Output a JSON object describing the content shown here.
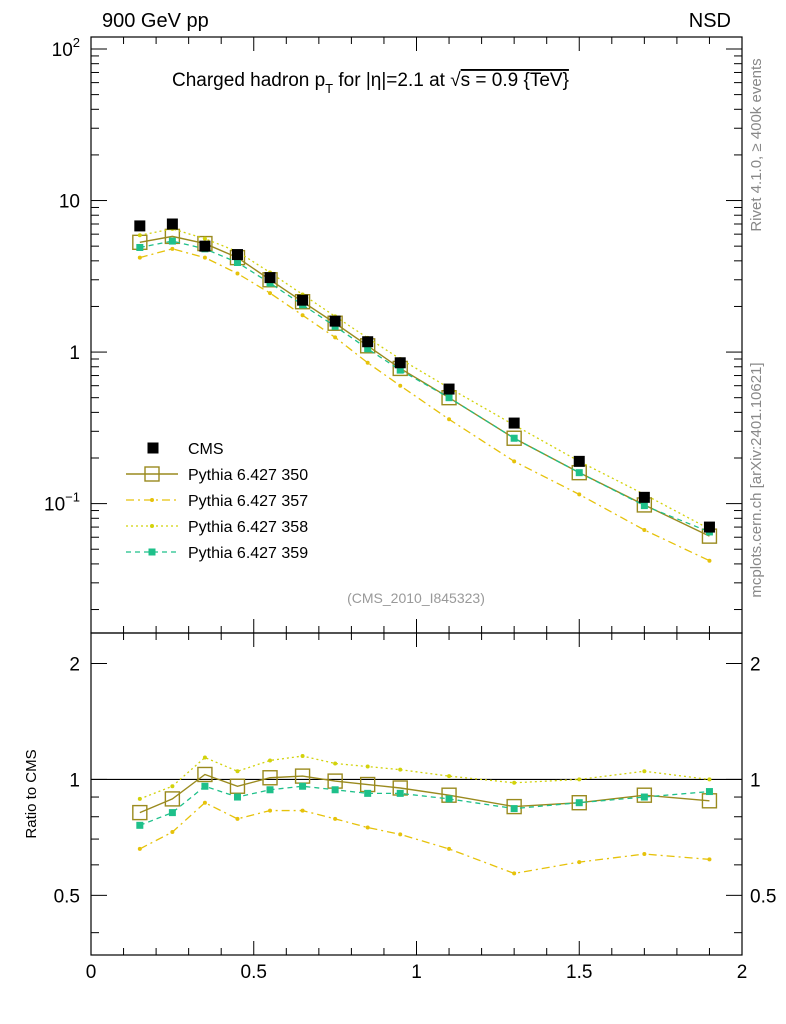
{
  "header": {
    "left": "900 GeV pp",
    "right": "NSD"
  },
  "title": {
    "prefix": "Charged hadron p",
    "sub": "T",
    "eta_part": " for |η|=2.1 at ",
    "sqrt": "√",
    "s_part": "s = 0.9 {TeV}"
  },
  "side_labels": {
    "rivet": "Rivet 4.1.0, ≥ 400k events",
    "mcplots": "mcplots.cern.ch [arXiv:2401.10621]"
  },
  "analysis_id": "(CMS_2010_I845323)",
  "ratio_ylabel": "Ratio to CMS",
  "colors": {
    "data": "#000000",
    "p350": "#9a8a1e",
    "p357": "#e6c20a",
    "p358": "#d2d20a",
    "p359": "#1ec08a"
  },
  "chart_data": {
    "type": "line",
    "scale": "log",
    "x": [
      0.15,
      0.25,
      0.35,
      0.45,
      0.55,
      0.65,
      0.75,
      0.85,
      0.95,
      1.1,
      1.3,
      1.5,
      1.7,
      1.9
    ],
    "xlim": [
      0,
      2
    ],
    "ylim": [
      0.014,
      120
    ],
    "xticks": [
      "0",
      "0.5",
      "1",
      "1.5",
      "2"
    ],
    "xtick_values": [
      0,
      0.5,
      1,
      1.5,
      2
    ],
    "yticks": [
      {
        "value": 0.1,
        "base": "10",
        "exp": "−1"
      },
      {
        "value": 1,
        "base": "1",
        "exp": ""
      },
      {
        "value": 10,
        "base": "10",
        "exp": ""
      },
      {
        "value": 100,
        "base": "10",
        "exp": "2"
      }
    ],
    "series": [
      {
        "key": "data",
        "name": "CMS",
        "values": [
          6.8,
          7.0,
          5.0,
          4.4,
          3.1,
          2.2,
          1.6,
          1.17,
          0.85,
          0.57,
          0.34,
          0.19,
          0.11,
          0.07
        ]
      },
      {
        "key": "p350",
        "name": "Pythia 6.427 350",
        "values": [
          5.3,
          5.8,
          5.2,
          4.2,
          3.0,
          2.15,
          1.55,
          1.1,
          0.78,
          0.5,
          0.27,
          0.16,
          0.098,
          0.061
        ]
      },
      {
        "key": "p357",
        "name": "Pythia 6.427 357",
        "values": [
          4.2,
          4.8,
          4.2,
          3.3,
          2.45,
          1.75,
          1.25,
          0.85,
          0.6,
          0.36,
          0.19,
          0.115,
          0.067,
          0.042
        ]
      },
      {
        "key": "p358",
        "name": "Pythia 6.427 358",
        "values": [
          5.9,
          6.5,
          5.6,
          4.6,
          3.35,
          2.4,
          1.72,
          1.24,
          0.9,
          0.58,
          0.33,
          0.19,
          0.115,
          0.068
        ]
      },
      {
        "key": "p359",
        "name": "Pythia 6.427 359",
        "values": [
          4.9,
          5.4,
          4.8,
          3.9,
          2.85,
          2.05,
          1.48,
          1.05,
          0.76,
          0.5,
          0.27,
          0.16,
          0.097,
          0.065
        ]
      }
    ],
    "ratio": {
      "ylim": [
        0.35,
        2.4
      ],
      "yticks": [
        0.5,
        1,
        2
      ],
      "ytick_labels": [
        "0.5",
        "1",
        "2"
      ],
      "series": [
        {
          "key": "p350",
          "values": [
            0.82,
            0.89,
            1.03,
            0.96,
            1.01,
            1.02,
            0.99,
            0.97,
            0.95,
            0.91,
            0.85,
            0.87,
            0.91,
            0.88
          ]
        },
        {
          "key": "p357",
          "values": [
            0.66,
            0.73,
            0.87,
            0.79,
            0.83,
            0.83,
            0.79,
            0.75,
            0.72,
            0.66,
            0.57,
            0.61,
            0.64,
            0.62
          ]
        },
        {
          "key": "p358",
          "values": [
            0.89,
            0.96,
            1.14,
            1.05,
            1.12,
            1.15,
            1.1,
            1.08,
            1.06,
            1.02,
            0.98,
            1.0,
            1.05,
            1.0
          ]
        },
        {
          "key": "p359",
          "values": [
            0.76,
            0.82,
            0.96,
            0.9,
            0.94,
            0.96,
            0.94,
            0.92,
            0.92,
            0.89,
            0.84,
            0.87,
            0.9,
            0.93
          ]
        }
      ]
    }
  }
}
